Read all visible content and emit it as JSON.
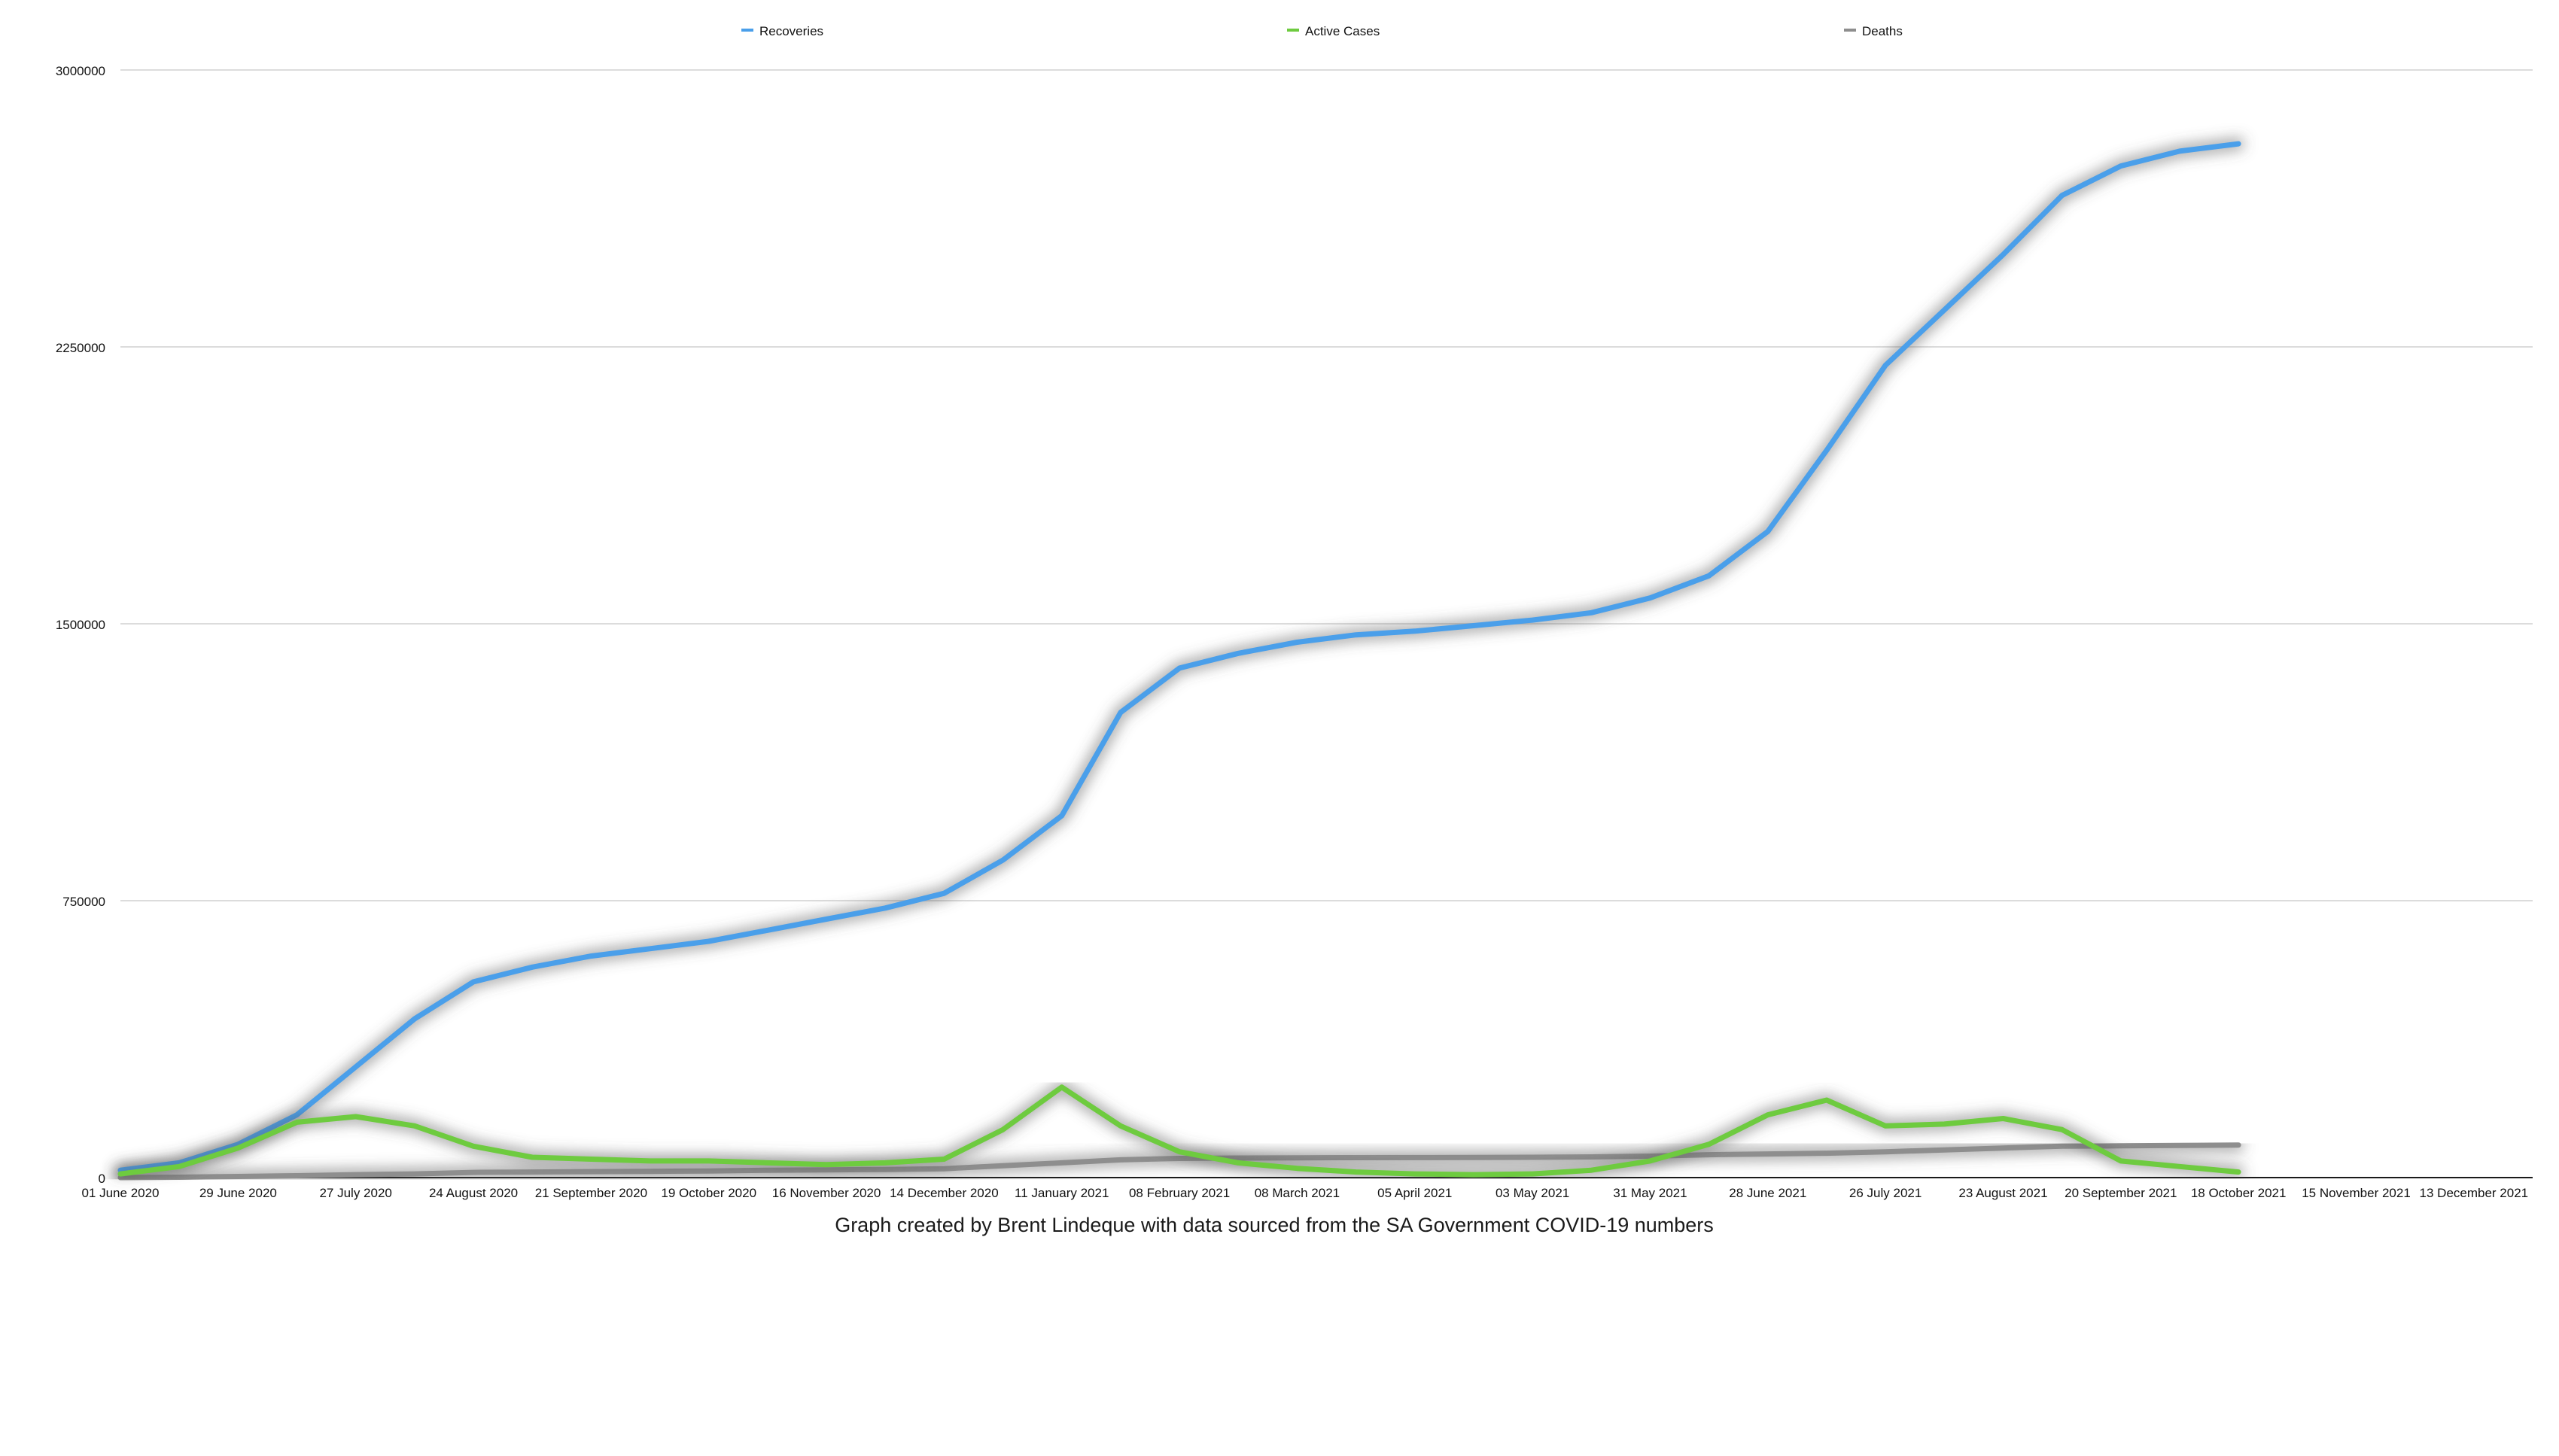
{
  "caption": "Graph created by Brent Lindeque with data sourced from the SA Government COVID-19 numbers",
  "chart_data": {
    "type": "line",
    "title": "",
    "xlabel": "",
    "ylabel": "",
    "ylim": [
      0,
      3000000
    ],
    "grid": true,
    "legend_position": "top",
    "y_ticks": [
      0,
      750000,
      1500000,
      2250000,
      3000000
    ],
    "x_ticks": [
      "01 June 2020",
      "29 June 2020",
      "27 July 2020",
      "24 August 2020",
      "21 September 2020",
      "19 October 2020",
      "16 November 2020",
      "14 December 2020",
      "11 January 2021",
      "08 February 2021",
      "08 March 2021",
      "05 April 2021",
      "03 May 2021",
      "31 May 2021",
      "28 June 2021",
      "26 July 2021",
      "23 August 2021",
      "20 September 2021",
      "18 October 2021",
      "15 November 2021",
      "13 December 2021"
    ],
    "x": [
      "01 June 2020",
      "15 June 2020",
      "29 June 2020",
      "13 July 2020",
      "27 July 2020",
      "10 August 2020",
      "24 August 2020",
      "07 September 2020",
      "21 September 2020",
      "05 October 2020",
      "19 October 2020",
      "02 November 2020",
      "16 November 2020",
      "30 November 2020",
      "14 December 2020",
      "28 December 2020",
      "11 January 2021",
      "25 January 2021",
      "08 February 2021",
      "22 February 2021",
      "08 March 2021",
      "22 March 2021",
      "05 April 2021",
      "19 April 2021",
      "03 May 2021",
      "17 May 2021",
      "31 May 2021",
      "14 June 2021",
      "28 June 2021",
      "12 July 2021",
      "26 July 2021",
      "09 August 2021",
      "23 August 2021",
      "06 September 2021",
      "20 September 2021",
      "04 October 2021",
      "18 October 2021"
    ],
    "series": [
      {
        "name": "Recoveries",
        "color": "#4a9fea",
        "values": [
          20000,
          40000,
          90000,
          170000,
          300000,
          430000,
          530000,
          570000,
          600000,
          620000,
          640000,
          670000,
          700000,
          730000,
          770000,
          860000,
          980000,
          1260000,
          1380000,
          1420000,
          1450000,
          1470000,
          1480000,
          1495000,
          1510000,
          1530000,
          1570000,
          1630000,
          1750000,
          1970000,
          2200000,
          2350000,
          2500000,
          2660000,
          2740000,
          2780000,
          2800000
        ]
      },
      {
        "name": "Active Cases",
        "color": "#6ecb3f",
        "values": [
          10000,
          30000,
          80000,
          150000,
          165000,
          140000,
          85000,
          55000,
          50000,
          45000,
          45000,
          40000,
          35000,
          40000,
          50000,
          130000,
          245000,
          140000,
          70000,
          40000,
          25000,
          15000,
          10000,
          8000,
          10000,
          20000,
          45000,
          90000,
          170000,
          210000,
          140000,
          145000,
          160000,
          130000,
          45000,
          30000,
          15000
        ]
      },
      {
        "name": "Deaths",
        "color": "#8e8e8e",
        "values": [
          0,
          1000,
          3000,
          5000,
          8000,
          10000,
          14000,
          15000,
          16000,
          17000,
          18000,
          20000,
          21000,
          22000,
          24000,
          32000,
          40000,
          48000,
          52000,
          53000,
          53500,
          54000,
          54300,
          54600,
          55000,
          56000,
          58000,
          62000,
          64000,
          66000,
          70000,
          75000,
          80000,
          85000,
          86000,
          87000,
          88000
        ]
      }
    ]
  }
}
